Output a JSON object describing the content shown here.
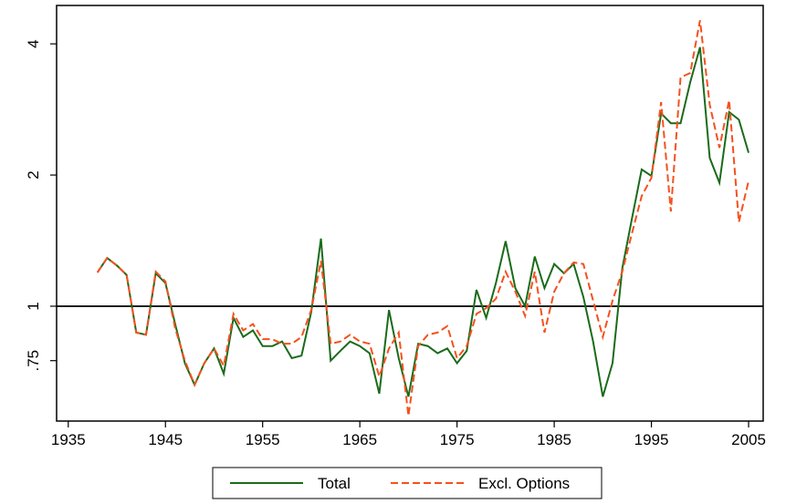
{
  "chart_data": {
    "type": "line",
    "x": [
      1938,
      1939,
      1940,
      1941,
      1942,
      1943,
      1944,
      1945,
      1946,
      1947,
      1948,
      1949,
      1950,
      1951,
      1952,
      1953,
      1954,
      1955,
      1956,
      1957,
      1958,
      1959,
      1960,
      1961,
      1962,
      1963,
      1964,
      1965,
      1966,
      1967,
      1968,
      1969,
      1970,
      1971,
      1972,
      1973,
      1974,
      1975,
      1976,
      1977,
      1978,
      1979,
      1980,
      1981,
      1982,
      1983,
      1984,
      1985,
      1986,
      1987,
      1988,
      1989,
      1990,
      1991,
      1992,
      1993,
      1994,
      1995,
      1996,
      1997,
      1998,
      1999,
      2000,
      2001,
      2002,
      2003,
      2004,
      2005
    ],
    "series": [
      {
        "name": "Total",
        "color": "#1a6b1a",
        "dash": false,
        "values": [
          1.195,
          1.29,
          1.24,
          1.18,
          0.87,
          0.86,
          1.19,
          1.13,
          0.91,
          0.74,
          0.66,
          0.74,
          0.8,
          0.7,
          0.94,
          0.85,
          0.88,
          0.81,
          0.81,
          0.83,
          0.76,
          0.77,
          0.97,
          1.43,
          0.75,
          0.79,
          0.83,
          0.81,
          0.78,
          0.63,
          0.98,
          0.76,
          0.62,
          0.82,
          0.81,
          0.78,
          0.8,
          0.74,
          0.79,
          1.09,
          0.94,
          1.13,
          1.41,
          1.1,
          1.0,
          1.3,
          1.1,
          1.25,
          1.19,
          1.25,
          1.05,
          0.83,
          0.62,
          0.74,
          1.22,
          1.59,
          2.06,
          1.99,
          2.77,
          2.63,
          2.63,
          3.27,
          3.93,
          2.19,
          1.92,
          2.79,
          2.68,
          2.25
        ]
      },
      {
        "name": "Excl. Options",
        "color": "#f4511e",
        "dash": true,
        "values": [
          1.195,
          1.29,
          1.24,
          1.18,
          0.87,
          0.86,
          1.2,
          1.14,
          0.89,
          0.75,
          0.66,
          0.74,
          0.8,
          0.73,
          0.96,
          0.88,
          0.91,
          0.84,
          0.84,
          0.82,
          0.82,
          0.85,
          0.98,
          1.27,
          0.82,
          0.83,
          0.86,
          0.83,
          0.82,
          0.69,
          0.8,
          0.87,
          0.56,
          0.81,
          0.86,
          0.87,
          0.9,
          0.76,
          0.81,
          0.96,
          0.99,
          1.04,
          1.2,
          1.08,
          0.95,
          1.2,
          0.87,
          1.08,
          1.19,
          1.26,
          1.25,
          1.03,
          0.85,
          1.03,
          1.2,
          1.47,
          1.79,
          1.97,
          2.94,
          1.65,
          3.35,
          3.43,
          4.53,
          2.9,
          2.31,
          2.97,
          1.56,
          1.94
        ]
      }
    ],
    "xlim": [
      1933.8,
      2006.5
    ],
    "xticks": [
      1935,
      1945,
      1955,
      1965,
      1975,
      1985,
      1995,
      2005
    ],
    "ylim": [
      0.545,
      4.9
    ],
    "log_y": true,
    "yticks": [
      {
        "value": 0.75,
        "label": ".75"
      },
      1,
      2,
      4
    ],
    "hline": 1,
    "grid": false,
    "legend": "bottom"
  }
}
